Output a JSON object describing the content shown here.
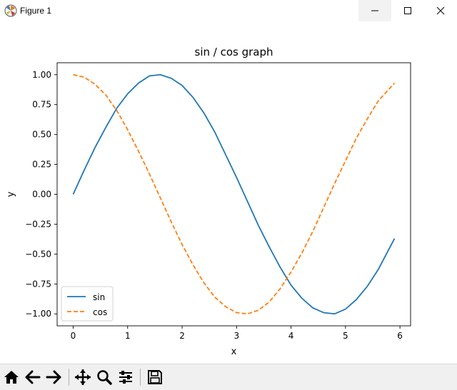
{
  "window": {
    "title": "Figure 1",
    "minimize_icon": "minimize-icon",
    "maximize_icon": "maximize-icon",
    "close_icon": "close-icon"
  },
  "toolbar": {
    "buttons": [
      "home-icon",
      "back-icon",
      "forward-icon",
      "pan-icon",
      "zoom-icon",
      "configure-subplots-icon",
      "save-icon"
    ]
  },
  "chart_data": {
    "type": "line",
    "title": "sin / cos graph",
    "xlabel": "x",
    "ylabel": "y",
    "xlim": [
      -0.295,
      6.195
    ],
    "ylim": [
      -1.1,
      1.1
    ],
    "xticks": [
      "0",
      "1",
      "2",
      "3",
      "4",
      "5",
      "6"
    ],
    "yticks": [
      "1.00",
      "0.75",
      "0.50",
      "0.25",
      "0.00",
      "−0.25",
      "−0.50",
      "−0.75",
      "−1.00"
    ],
    "legend_position": "lower-left",
    "grid": false,
    "series": [
      {
        "name": "sin",
        "style": "solid",
        "color": "#1f77b4",
        "x": [
          0,
          0.2,
          0.4,
          0.6,
          0.8,
          1.0,
          1.2,
          1.4,
          1.6,
          1.8,
          2.0,
          2.2,
          2.4,
          2.6,
          2.8,
          3.0,
          3.2,
          3.4,
          3.6,
          3.8,
          4.0,
          4.2,
          4.4,
          4.6,
          4.8,
          5.0,
          5.2,
          5.4,
          5.6,
          5.9
        ],
        "y": [
          0.0,
          0.2,
          0.39,
          0.56,
          0.72,
          0.84,
          0.93,
          0.99,
          1.0,
          0.97,
          0.91,
          0.81,
          0.68,
          0.52,
          0.33,
          0.14,
          -0.06,
          -0.26,
          -0.44,
          -0.61,
          -0.76,
          -0.87,
          -0.95,
          -0.99,
          -1.0,
          -0.96,
          -0.88,
          -0.77,
          -0.63,
          -0.37
        ]
      },
      {
        "name": "cos",
        "style": "dashed",
        "color": "#ff7f0e",
        "x": [
          0,
          0.2,
          0.4,
          0.6,
          0.8,
          1.0,
          1.2,
          1.4,
          1.6,
          1.8,
          2.0,
          2.2,
          2.4,
          2.6,
          2.8,
          3.0,
          3.2,
          3.4,
          3.6,
          3.8,
          4.0,
          4.2,
          4.4,
          4.6,
          4.8,
          5.0,
          5.2,
          5.4,
          5.6,
          5.9
        ],
        "y": [
          1.0,
          0.98,
          0.92,
          0.83,
          0.7,
          0.54,
          0.36,
          0.17,
          -0.03,
          -0.23,
          -0.42,
          -0.59,
          -0.74,
          -0.86,
          -0.94,
          -0.99,
          -1.0,
          -0.97,
          -0.9,
          -0.79,
          -0.65,
          -0.49,
          -0.31,
          -0.11,
          0.09,
          0.28,
          0.47,
          0.63,
          0.78,
          0.93
        ]
      }
    ]
  }
}
